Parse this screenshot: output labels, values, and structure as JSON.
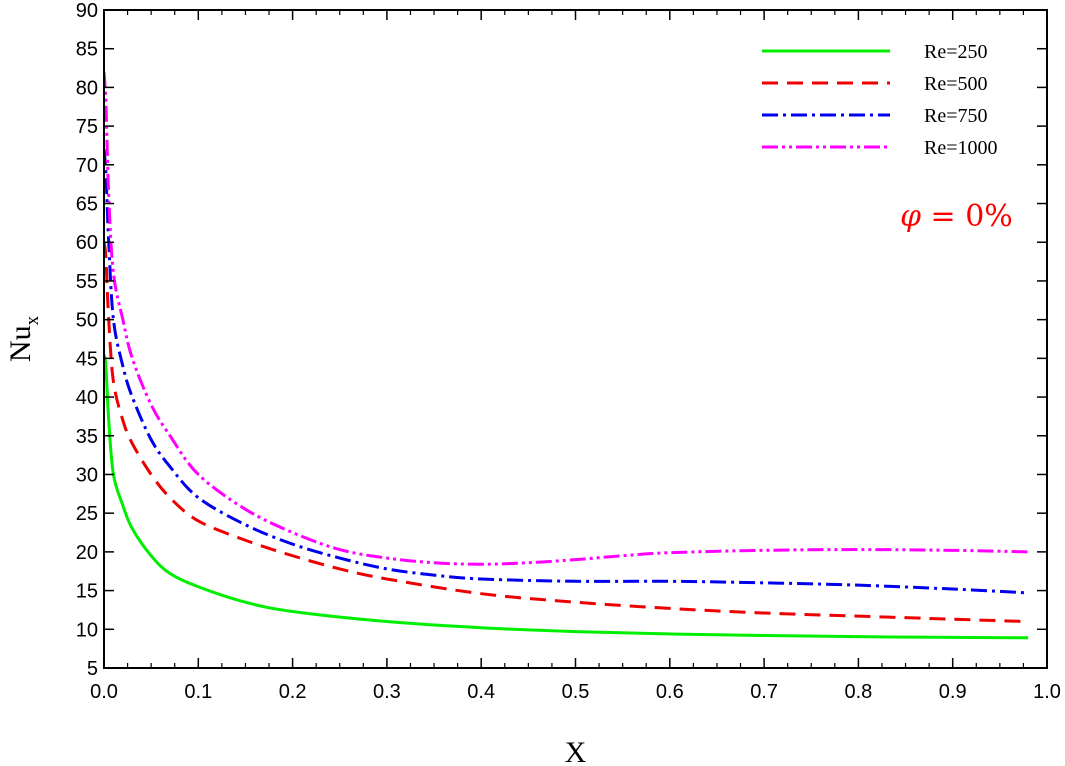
{
  "chart_data": {
    "type": "line",
    "title": "",
    "xlabel": "X",
    "ylabel_main": "Nu",
    "ylabel_sub": "x",
    "xlim": [
      0.0,
      1.0
    ],
    "ylim": [
      5,
      90
    ],
    "xticks": [
      "0.0",
      "0.1",
      "0.2",
      "0.3",
      "0.4",
      "0.5",
      "0.6",
      "0.7",
      "0.8",
      "0.9",
      "1.0"
    ],
    "yticks": [
      "5",
      "10",
      "15",
      "20",
      "25",
      "30",
      "35",
      "40",
      "45",
      "50",
      "55",
      "60",
      "65",
      "70",
      "75",
      "80",
      "85",
      "90"
    ],
    "grid": false,
    "legend_position": "top-right",
    "annotation": {
      "symbol": "φ",
      "text": " = 0%",
      "color": "#ff0000"
    },
    "series": [
      {
        "name": "Re=250",
        "color": "#00ee00",
        "dash": "",
        "points": [
          [
            0.0,
            45.5
          ],
          [
            0.002,
            44
          ],
          [
            0.005,
            37
          ],
          [
            0.01,
            30
          ],
          [
            0.02,
            26
          ],
          [
            0.03,
            23
          ],
          [
            0.05,
            19.5
          ],
          [
            0.07,
            17.2
          ],
          [
            0.1,
            15.5
          ],
          [
            0.15,
            13.5
          ],
          [
            0.2,
            12.3
          ],
          [
            0.3,
            11.0
          ],
          [
            0.4,
            10.2
          ],
          [
            0.5,
            9.7
          ],
          [
            0.6,
            9.4
          ],
          [
            0.7,
            9.2
          ],
          [
            0.8,
            9.05
          ],
          [
            0.9,
            8.95
          ],
          [
            0.98,
            8.9
          ]
        ]
      },
      {
        "name": "Re=500",
        "color": "#ee0000",
        "dash": "16,9",
        "points": [
          [
            0.0,
            60
          ],
          [
            0.002,
            58
          ],
          [
            0.005,
            50
          ],
          [
            0.01,
            42
          ],
          [
            0.02,
            37
          ],
          [
            0.03,
            34
          ],
          [
            0.05,
            30
          ],
          [
            0.07,
            27
          ],
          [
            0.1,
            24
          ],
          [
            0.15,
            21.5
          ],
          [
            0.2,
            19.5
          ],
          [
            0.25,
            17.8
          ],
          [
            0.3,
            16.5
          ],
          [
            0.4,
            14.6
          ],
          [
            0.5,
            13.5
          ],
          [
            0.6,
            12.7
          ],
          [
            0.7,
            12.1
          ],
          [
            0.8,
            11.7
          ],
          [
            0.9,
            11.3
          ],
          [
            0.98,
            11.0
          ]
        ]
      },
      {
        "name": "Re=750",
        "color": "#0000ee",
        "dash": "16,5,3,5",
        "points": [
          [
            0.0,
            72
          ],
          [
            0.002,
            69
          ],
          [
            0.005,
            60
          ],
          [
            0.01,
            50
          ],
          [
            0.02,
            44
          ],
          [
            0.03,
            40
          ],
          [
            0.05,
            34.5
          ],
          [
            0.07,
            31
          ],
          [
            0.1,
            27
          ],
          [
            0.15,
            23.5
          ],
          [
            0.2,
            21
          ],
          [
            0.25,
            19.2
          ],
          [
            0.3,
            17.8
          ],
          [
            0.35,
            17.0
          ],
          [
            0.4,
            16.5
          ],
          [
            0.5,
            16.2
          ],
          [
            0.6,
            16.2
          ],
          [
            0.7,
            16.0
          ],
          [
            0.8,
            15.7
          ],
          [
            0.9,
            15.2
          ],
          [
            0.98,
            14.7
          ]
        ]
      },
      {
        "name": "Re=1000",
        "color": "#ff00ff",
        "dash": "16,4,3,4,3,4",
        "points": [
          [
            0.0,
            82
          ],
          [
            0.002,
            78
          ],
          [
            0.005,
            66
          ],
          [
            0.01,
            56
          ],
          [
            0.02,
            50
          ],
          [
            0.03,
            45
          ],
          [
            0.05,
            39
          ],
          [
            0.07,
            35
          ],
          [
            0.1,
            30
          ],
          [
            0.15,
            25.5
          ],
          [
            0.2,
            22.5
          ],
          [
            0.25,
            20.3
          ],
          [
            0.3,
            19.2
          ],
          [
            0.35,
            18.6
          ],
          [
            0.4,
            18.4
          ],
          [
            0.45,
            18.6
          ],
          [
            0.5,
            19.0
          ],
          [
            0.55,
            19.5
          ],
          [
            0.6,
            19.9
          ],
          [
            0.7,
            20.2
          ],
          [
            0.8,
            20.3
          ],
          [
            0.9,
            20.2
          ],
          [
            0.98,
            20.0
          ]
        ]
      }
    ]
  }
}
